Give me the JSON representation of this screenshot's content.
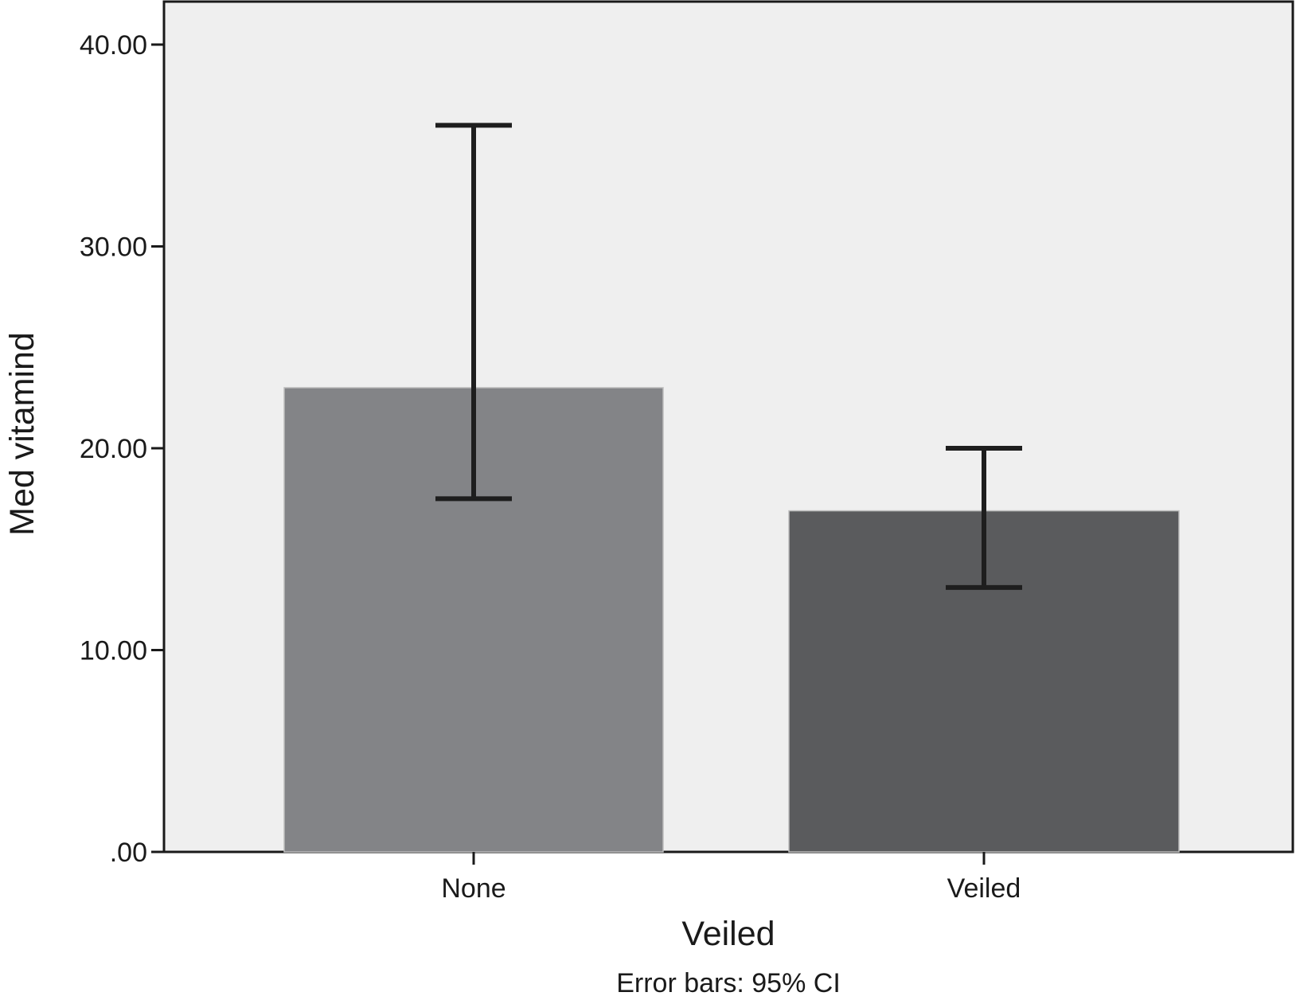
{
  "chart_data": {
    "type": "bar",
    "categories": [
      "None",
      "Veiled"
    ],
    "values": [
      23.0,
      16.9
    ],
    "error_bars": [
      {
        "low": 17.5,
        "high": 36.0
      },
      {
        "low": 13.1,
        "high": 20.0
      }
    ],
    "bar_colors": [
      "#838487",
      "#5a5b5d"
    ],
    "xlabel": "Veiled",
    "ylabel": "Med vitamind",
    "ylim": [
      0,
      40.0
    ],
    "yticks": [
      0,
      10,
      20,
      30,
      40
    ],
    "ytick_labels": [
      ".00",
      "10.00",
      "20.00",
      "30.00",
      "40.00"
    ],
    "footnote": "Error bars: 95% CI",
    "plot_background": "#efefef",
    "grid": false,
    "legend": "none"
  }
}
